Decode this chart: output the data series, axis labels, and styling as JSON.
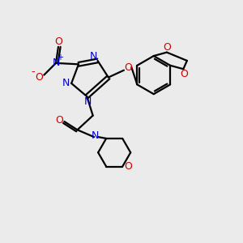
{
  "bg_color": "#ebebeb",
  "bond_color": "#000000",
  "blue": "#0000cc",
  "red": "#cc0000",
  "black": "#000000",
  "linewidth": 1.6,
  "figsize": [
    3.0,
    3.0
  ],
  "dpi": 100,
  "xlim": [
    0,
    10
  ],
  "ylim": [
    0,
    10
  ]
}
